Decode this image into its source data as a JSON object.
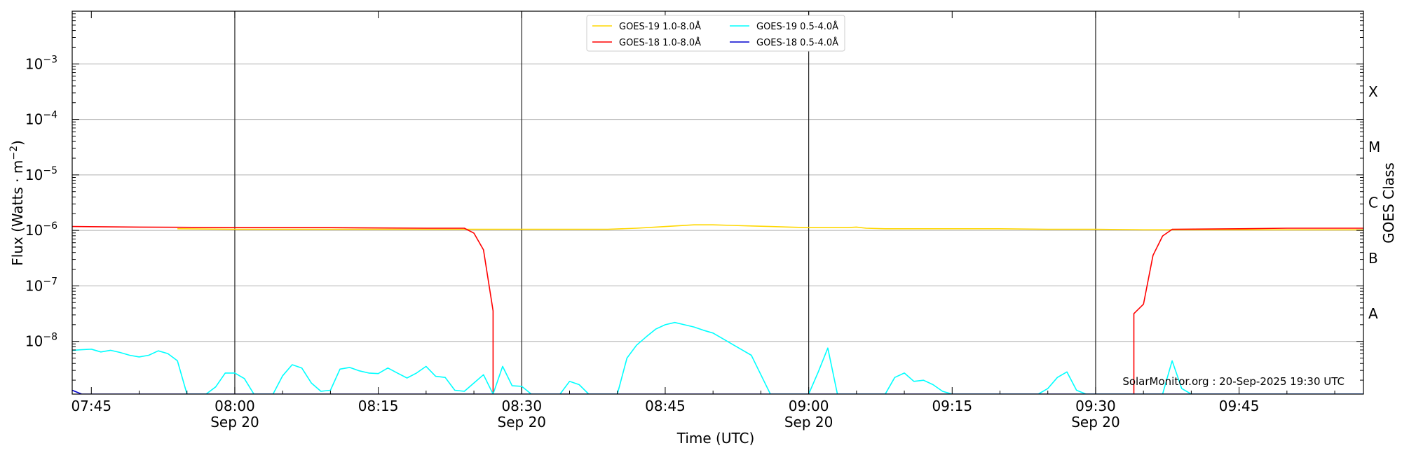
{
  "chart_data": {
    "type": "line",
    "xlabel": "Time (UTC)",
    "ylabel": "Flux (Watts · m",
    "ylabel_sup": "−2",
    "ylabel_close": ")",
    "right_axis_label": "GOES Class",
    "credit": "SolarMonitor.org : 20-Sep-2025 19:30 UTC",
    "x_range_minutes": [
      -17,
      118
    ],
    "y_log_range": [
      -8.95,
      -2.05
    ],
    "y_scale": "log",
    "grid": true,
    "legend_position": "top-center",
    "y_ticks": [
      {
        "exp": -8,
        "base": "10",
        "power": "−8"
      },
      {
        "exp": -7,
        "base": "10",
        "power": "−7"
      },
      {
        "exp": -6,
        "base": "10",
        "power": "−6"
      },
      {
        "exp": -5,
        "base": "10",
        "power": "−5"
      },
      {
        "exp": -4,
        "base": "10",
        "power": "−4"
      },
      {
        "exp": -3,
        "base": "10",
        "power": "−3"
      }
    ],
    "x_ticks": [
      {
        "t": -15,
        "label": "07:45",
        "date": ""
      },
      {
        "t": 0,
        "label": "08:00",
        "date": "Sep 20"
      },
      {
        "t": 15,
        "label": "08:15",
        "date": ""
      },
      {
        "t": 30,
        "label": "08:30",
        "date": "Sep 20"
      },
      {
        "t": 45,
        "label": "08:45",
        "date": ""
      },
      {
        "t": 60,
        "label": "09:00",
        "date": "Sep 20"
      },
      {
        "t": 75,
        "label": "09:15",
        "date": ""
      },
      {
        "t": 90,
        "label": "09:30",
        "date": "Sep 20"
      },
      {
        "t": 105,
        "label": "09:45",
        "date": ""
      }
    ],
    "vlines": [
      0,
      30,
      60,
      90
    ],
    "class_labels": [
      {
        "label": "A",
        "exp": -7.5
      },
      {
        "label": "B",
        "exp": -6.5
      },
      {
        "label": "C",
        "exp": -5.5
      },
      {
        "label": "M",
        "exp": -4.5
      },
      {
        "label": "X",
        "exp": -3.5
      }
    ],
    "series": [
      {
        "name": "GOES-19 1.0-8.0Å",
        "color": "#FFD700",
        "points": [
          [
            -6,
            -5.97
          ],
          [
            0,
            -5.98
          ],
          [
            15,
            -5.98
          ],
          [
            24,
            -5.98
          ],
          [
            30,
            -5.98
          ],
          [
            35,
            -5.98
          ],
          [
            39,
            -5.98
          ],
          [
            42,
            -5.96
          ],
          [
            44,
            -5.94
          ],
          [
            46,
            -5.92
          ],
          [
            48,
            -5.9
          ],
          [
            50,
            -5.9
          ],
          [
            52,
            -5.91
          ],
          [
            54,
            -5.92
          ],
          [
            56,
            -5.93
          ],
          [
            58,
            -5.94
          ],
          [
            60,
            -5.95
          ],
          [
            62,
            -5.95
          ],
          [
            64,
            -5.95
          ],
          [
            65,
            -5.94
          ],
          [
            66,
            -5.96
          ],
          [
            68,
            -5.97
          ],
          [
            75,
            -5.97
          ],
          [
            80,
            -5.97
          ],
          [
            85,
            -5.98
          ],
          [
            90,
            -5.98
          ],
          [
            95,
            -5.99
          ],
          [
            100,
            -5.99
          ],
          [
            110,
            -5.99
          ],
          [
            118,
            -5.99
          ]
        ]
      },
      {
        "name": "GOES-18 1.0-8.0Å",
        "color": "#FF0000",
        "points": [
          [
            -17,
            -5.93
          ],
          [
            -10,
            -5.94
          ],
          [
            0,
            -5.95
          ],
          [
            10,
            -5.95
          ],
          [
            20,
            -5.96
          ],
          [
            24,
            -5.96
          ],
          [
            25,
            -6.05
          ],
          [
            26,
            -6.35
          ],
          [
            27,
            -7.45
          ],
          [
            27,
            -8.95
          ],
          null,
          [
            94,
            -8.95
          ],
          [
            94,
            -7.5
          ],
          [
            95,
            -7.33
          ],
          [
            96,
            -6.45
          ],
          [
            97,
            -6.1
          ],
          [
            98,
            -5.98
          ],
          [
            105,
            -5.97
          ],
          [
            110,
            -5.96
          ],
          [
            118,
            -5.96
          ]
        ]
      },
      {
        "name": "GOES-19 0.5-4.0Å",
        "color": "#00FFFF",
        "points": [
          [
            -17,
            -8.16
          ],
          [
            -16,
            -8.15
          ],
          [
            -15,
            -8.14
          ],
          [
            -14,
            -8.19
          ],
          [
            -13,
            -8.16
          ],
          [
            -12,
            -8.2
          ],
          [
            -11,
            -8.25
          ],
          [
            -10,
            -8.28
          ],
          [
            -9,
            -8.25
          ],
          [
            -8,
            -8.17
          ],
          [
            -7,
            -8.22
          ],
          [
            -6,
            -8.35
          ],
          [
            -5,
            -8.95
          ],
          [
            -3,
            -8.95
          ],
          [
            -2,
            -8.82
          ],
          [
            -1,
            -8.57
          ],
          [
            0,
            -8.57
          ],
          [
            1,
            -8.67
          ],
          [
            2,
            -8.95
          ],
          [
            4,
            -8.95
          ],
          [
            5,
            -8.62
          ],
          [
            6,
            -8.42
          ],
          [
            7,
            -8.48
          ],
          [
            8,
            -8.75
          ],
          [
            9,
            -8.9
          ],
          [
            10,
            -8.88
          ],
          [
            11,
            -8.5
          ],
          [
            12,
            -8.47
          ],
          [
            13,
            -8.53
          ],
          [
            14,
            -8.57
          ],
          [
            15,
            -8.58
          ],
          [
            16,
            -8.48
          ],
          [
            17,
            -8.57
          ],
          [
            18,
            -8.66
          ],
          [
            19,
            -8.57
          ],
          [
            20,
            -8.45
          ],
          [
            21,
            -8.63
          ],
          [
            22,
            -8.65
          ],
          [
            23,
            -8.88
          ],
          [
            24,
            -8.9
          ],
          [
            25,
            -8.75
          ],
          [
            26,
            -8.6
          ],
          [
            27,
            -8.95
          ],
          [
            28,
            -8.45
          ],
          [
            29,
            -8.8
          ],
          [
            30,
            -8.81
          ],
          [
            31,
            -8.95
          ],
          [
            34,
            -8.95
          ],
          [
            35,
            -8.72
          ],
          [
            36,
            -8.78
          ],
          [
            37,
            -8.95
          ],
          [
            38,
            -8.95
          ],
          [
            39,
            -8.95
          ],
          [
            40,
            -8.95
          ],
          [
            41,
            -8.3
          ],
          [
            42,
            -8.07
          ],
          [
            43,
            -7.92
          ],
          [
            44,
            -7.78
          ],
          [
            45,
            -7.7
          ],
          [
            46,
            -7.66
          ],
          [
            47,
            -7.7
          ],
          [
            48,
            -7.74
          ],
          [
            49,
            -7.8
          ],
          [
            50,
            -7.85
          ],
          [
            51,
            -7.95
          ],
          [
            52,
            -8.05
          ],
          [
            53,
            -8.15
          ],
          [
            54,
            -8.25
          ],
          [
            55,
            -8.6
          ],
          [
            56,
            -8.95
          ],
          [
            58,
            -8.95
          ],
          [
            59,
            -8.95
          ],
          [
            60,
            -8.95
          ],
          [
            61,
            -8.55
          ],
          [
            62,
            -8.12
          ],
          [
            63,
            -8.95
          ],
          [
            64,
            -8.95
          ],
          [
            65,
            -8.95
          ],
          [
            66,
            -8.95
          ],
          [
            67,
            -8.95
          ],
          [
            68,
            -8.95
          ],
          [
            69,
            -8.65
          ],
          [
            70,
            -8.57
          ],
          [
            71,
            -8.72
          ],
          [
            72,
            -8.7
          ],
          [
            73,
            -8.78
          ],
          [
            74,
            -8.9
          ],
          [
            75,
            -8.95
          ],
          [
            76,
            -8.95
          ],
          [
            80,
            -8.95
          ],
          [
            84,
            -8.95
          ],
          [
            85,
            -8.85
          ],
          [
            86,
            -8.65
          ],
          [
            87,
            -8.55
          ],
          [
            88,
            -8.88
          ],
          [
            89,
            -8.95
          ],
          [
            90,
            -8.95
          ],
          [
            92,
            -8.95
          ],
          [
            93,
            -8.95
          ],
          [
            94,
            -8.95
          ],
          [
            95,
            -8.95
          ],
          [
            96,
            -8.95
          ],
          [
            97,
            -8.95
          ],
          [
            98,
            -8.35
          ],
          [
            99,
            -8.85
          ],
          [
            100,
            -8.95
          ],
          [
            105,
            -8.95
          ],
          [
            110,
            -8.95
          ],
          [
            115,
            -8.95
          ],
          [
            118,
            -8.95
          ]
        ]
      },
      {
        "name": "GOES-18 0.5-4.0Å",
        "color": "#0000CD",
        "points": [
          [
            -17,
            -8.88
          ],
          [
            -16,
            -8.95
          ],
          [
            0,
            -8.95
          ],
          [
            30,
            -8.95
          ],
          [
            60,
            -8.95
          ],
          [
            90,
            -8.95
          ],
          [
            118,
            -8.95
          ]
        ]
      }
    ]
  }
}
